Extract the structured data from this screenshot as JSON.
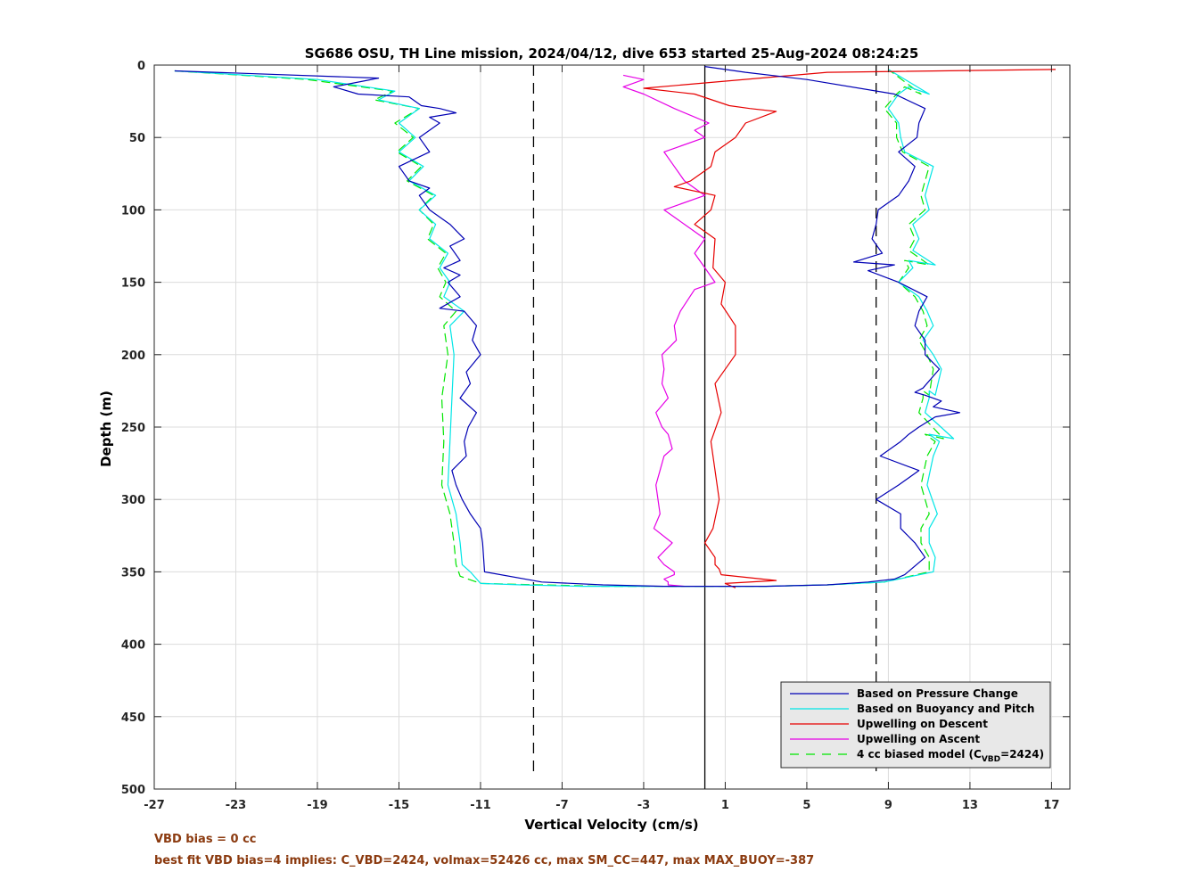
{
  "chart_data": {
    "type": "line",
    "title": "SG686 OSU, TH Line mission, 2024/04/12, dive 653 started 25-Aug-2024 08:24:25",
    "xlabel": "Vertical Velocity (cm/s)",
    "ylabel": "Depth (m)",
    "xlim": [
      -27,
      17.9
    ],
    "ylim": [
      0,
      500
    ],
    "y_reversed": true,
    "grid": true,
    "legend_position": "bottom-right",
    "x_ticks": [
      "-27",
      "-23",
      "-19",
      "-15",
      "-11",
      "-7",
      "-3",
      "1",
      "5",
      "9",
      "13",
      "17"
    ],
    "y_ticks": [
      "0",
      "50",
      "100",
      "150",
      "200",
      "250",
      "300",
      "350",
      "400",
      "450",
      "500"
    ],
    "reference_lines": [
      {
        "type": "vertical",
        "x": 0,
        "style": "solid",
        "color": "#000000"
      },
      {
        "type": "vertical",
        "x": -8.4,
        "style": "dashed",
        "color": "#000000"
      },
      {
        "type": "vertical",
        "x": 8.4,
        "style": "dashed",
        "color": "#000000"
      }
    ],
    "series": [
      {
        "name": "Based on Pressure Change",
        "color": "#0000b4",
        "style": "solid",
        "x": [
          -26,
          -16,
          -18.2,
          -17,
          -14.5,
          -13.9,
          -13,
          -12.2,
          -13.5,
          -13,
          -14,
          -13.5,
          -15,
          -14.5,
          -13.5,
          -14,
          -13.5,
          -13,
          -12.5,
          -11.8,
          -12.5,
          -12,
          -12.8,
          -12,
          -12.6,
          -12,
          -13,
          -11.8,
          -11.2,
          -11.4,
          -11,
          -11.7,
          -11.5,
          -12,
          -11.2,
          -11.6,
          -11.8,
          -11.7,
          -12.4,
          -12.2,
          -11.9,
          -11.5,
          -11,
          -10.9,
          -10.8,
          -8,
          -5,
          -2,
          0
        ],
        "y": [
          4,
          9,
          15,
          20,
          22,
          28,
          30,
          33,
          36,
          40,
          50,
          60,
          70,
          80,
          85,
          90,
          100,
          105,
          110,
          120,
          125,
          135,
          140,
          145,
          150,
          160,
          168,
          170,
          180,
          190,
          200,
          212,
          220,
          230,
          240,
          250,
          260,
          270,
          280,
          290,
          300,
          310,
          320,
          330,
          350,
          357,
          359,
          360,
          360
        ]
      },
      {
        "name": "Based on Pressure Change",
        "color": "#0000b4",
        "style": "solid",
        "x": [
          0,
          3,
          6,
          8,
          9.3,
          9.8,
          10.8,
          10.3,
          9.6,
          9.6,
          8.4,
          9.5,
          10.5,
          8.6,
          9.6,
          10,
          10.5,
          11.3,
          12.5,
          11.2,
          11.6,
          10.8,
          10.3,
          10.7,
          11.5,
          10.8,
          10.8,
          10.3,
          10.5,
          10.9,
          9.5,
          8,
          9.3,
          7.3,
          8.7,
          8.2,
          8.4,
          8.5,
          9.5,
          10,
          10.3,
          9.5,
          10.4,
          10.5,
          10.8,
          9.3,
          5,
          2,
          0
        ],
        "y": [
          360,
          360,
          359,
          357,
          355,
          352,
          340,
          330,
          320,
          310,
          300,
          290,
          280,
          270,
          260,
          255,
          250,
          243,
          240,
          236,
          232,
          228,
          226,
          223,
          210,
          200,
          190,
          180,
          170,
          160,
          150,
          142,
          138,
          136,
          130,
          120,
          110,
          100,
          90,
          80,
          70,
          60,
          50,
          40,
          30,
          20,
          10,
          5,
          1
        ]
      },
      {
        "name": "Based on Buoyancy and Pitch",
        "color": "#00e6e6",
        "style": "solid",
        "x": [
          -26,
          -19,
          -15.2,
          -16,
          -14,
          -15,
          -14.2,
          -15,
          -13.8,
          -14.5,
          -13.2,
          -14,
          -13.2,
          -13.5,
          -12.6,
          -13,
          -12.5,
          -12.8,
          -11.8,
          -12.5,
          -12.3,
          -12.4,
          -12.5,
          -12.6,
          -12.2,
          -12,
          -11.9,
          -11.5,
          -11,
          -9,
          -6,
          -3,
          0
        ],
        "y": [
          4,
          10,
          18,
          24,
          30,
          40,
          50,
          60,
          70,
          80,
          90,
          100,
          110,
          120,
          130,
          140,
          150,
          160,
          170,
          180,
          200,
          230,
          260,
          290,
          310,
          330,
          345,
          350,
          358,
          359,
          360,
          360,
          360
        ]
      },
      {
        "name": "Based on Buoyancy and Pitch",
        "color": "#00e6e6",
        "style": "solid",
        "x": [
          0,
          3,
          6,
          8.8,
          11.2,
          11.3,
          11,
          11,
          11.4,
          10.9,
          11.2,
          11.5,
          11,
          12.2,
          10.8,
          11,
          11,
          11.3,
          11.6,
          11.2,
          10.7,
          11.2,
          10.9,
          10.5,
          9.5,
          10.2,
          10,
          11.3,
          10.2,
          10.5,
          10.2,
          11,
          10.8,
          11,
          11.2,
          9.8,
          9.6,
          9.5,
          9,
          9.5,
          10,
          11,
          9
        ],
        "y": [
          360,
          360,
          359,
          357,
          350,
          340,
          330,
          320,
          310,
          290,
          270,
          260,
          255,
          258,
          240,
          230,
          225,
          228,
          210,
          200,
          190,
          180,
          170,
          160,
          150,
          140,
          135,
          138,
          128,
          120,
          110,
          100,
          90,
          80,
          70,
          60,
          50,
          40,
          30,
          20,
          15,
          20,
          3
        ]
      },
      {
        "name": "Upwelling on Descent",
        "color": "#e60000",
        "style": "solid",
        "x": [
          17.2,
          6,
          -3,
          -0.5,
          1.2,
          2.2,
          3.5,
          2,
          1.5,
          0.5,
          0.3,
          -0.7,
          -1.5,
          0.5,
          0.3,
          -0.5,
          0.5,
          0.4,
          1,
          0.8,
          1.5,
          1.5,
          0.5,
          0.8,
          0.3,
          0.5,
          0.7,
          0.4,
          0,
          0.5,
          0.5,
          0.7,
          0.8,
          3.5,
          1,
          1.5
        ],
        "y": [
          3,
          5,
          16,
          20,
          28,
          30,
          32,
          40,
          50,
          60,
          70,
          80,
          84,
          90,
          100,
          110,
          120,
          140,
          150,
          165,
          180,
          200,
          220,
          240,
          260,
          280,
          300,
          320,
          330,
          340,
          345,
          348,
          352,
          356,
          358,
          361
        ]
      },
      {
        "name": "Upwelling on Ascent",
        "color": "#e600e6",
        "style": "solid",
        "x": [
          -4,
          -3,
          -4,
          -3,
          -1.5,
          0.2,
          -0.5,
          0,
          -2,
          -1.5,
          -1,
          0,
          -2,
          -1,
          0,
          -0.5,
          0,
          0.5,
          -0.5,
          -1.2,
          -1.5,
          -1.4,
          -2.1,
          -2,
          -2.1,
          -1.8,
          -2.4,
          -2.1,
          -1.8,
          -1.6,
          -2,
          -2.2,
          -2.4,
          -2.3,
          -2.2,
          -2.5,
          -1.6,
          -2.3,
          -2,
          -1.5,
          -1.5,
          -2,
          -1.8,
          -1.8,
          -1
        ],
        "y": [
          7,
          10,
          15,
          20,
          30,
          40,
          45,
          50,
          60,
          70,
          80,
          90,
          100,
          110,
          120,
          130,
          140,
          150,
          155,
          170,
          180,
          190,
          200,
          210,
          220,
          230,
          240,
          250,
          255,
          265,
          270,
          280,
          290,
          300,
          310,
          320,
          330,
          340,
          345,
          350,
          352,
          355,
          357,
          359,
          360
        ]
      },
      {
        "name": "4 cc biased model (C_VBD=2424)",
        "color": "#00e600",
        "style": "dashed",
        "x": [
          -26,
          -19.5,
          -15.3,
          -16.2,
          -14,
          -15.2,
          -14.3,
          -15.1,
          -13.9,
          -14.6,
          -13.3,
          -14,
          -13.3,
          -13.6,
          -12.7,
          -13.1,
          -12.7,
          -13,
          -12.2,
          -12.8,
          -12.6,
          -12.9,
          -12.8,
          -12.9,
          -12.5,
          -12.3,
          -12.2,
          -12,
          -11,
          -8,
          -5,
          -2,
          0
        ],
        "y": [
          4,
          10,
          18,
          24,
          30,
          40,
          50,
          60,
          70,
          80,
          90,
          100,
          110,
          120,
          130,
          140,
          150,
          160,
          170,
          180,
          200,
          230,
          260,
          290,
          310,
          330,
          345,
          353,
          358,
          359,
          360,
          360,
          360
        ]
      },
      {
        "name": "4 cc biased model (C_VBD=2424)",
        "color": "#00e600",
        "style": "dashed",
        "x": [
          0,
          3,
          6,
          8.8,
          11,
          11,
          10.6,
          10.6,
          11,
          10.6,
          10.9,
          11.3,
          10.8,
          11.7,
          10.5,
          10.7,
          10.7,
          11,
          11.2,
          10.9,
          10.5,
          10.9,
          10.7,
          10.3,
          9.5,
          10,
          9.8,
          11,
          10,
          10.3,
          10,
          10.8,
          10.6,
          10.8,
          11,
          9.7,
          9.4,
          9.4,
          8.8,
          9.4,
          9.8,
          10.6,
          9
        ],
        "y": [
          360,
          360,
          359,
          357,
          350,
          340,
          330,
          320,
          310,
          290,
          270,
          260,
          255,
          258,
          240,
          230,
          225,
          228,
          210,
          200,
          190,
          180,
          170,
          160,
          150,
          140,
          135,
          138,
          128,
          120,
          110,
          100,
          90,
          80,
          70,
          60,
          50,
          40,
          30,
          20,
          15,
          20,
          3
        ]
      }
    ],
    "legend": [
      {
        "label": "Based on Pressure Change",
        "color": "#0000b4",
        "style": "solid"
      },
      {
        "label": "Based on Buoyancy and Pitch",
        "color": "#00e6e6",
        "style": "solid"
      },
      {
        "label": "Upwelling on Descent",
        "color": "#e60000",
        "style": "solid"
      },
      {
        "label": "Upwelling on Ascent",
        "color": "#e600e6",
        "style": "solid"
      },
      {
        "label": "4 cc biased model (C",
        "label_sub": "VBD",
        "label_tail": "=2424)",
        "color": "#00e600",
        "style": "dashed"
      }
    ]
  },
  "footer": {
    "line1": "VBD bias = 0 cc",
    "line2": "best fit VBD bias=4 implies: C_VBD=2424, volmax=52426 cc, max SM_CC=447, max MAX_BUOY=-387"
  }
}
